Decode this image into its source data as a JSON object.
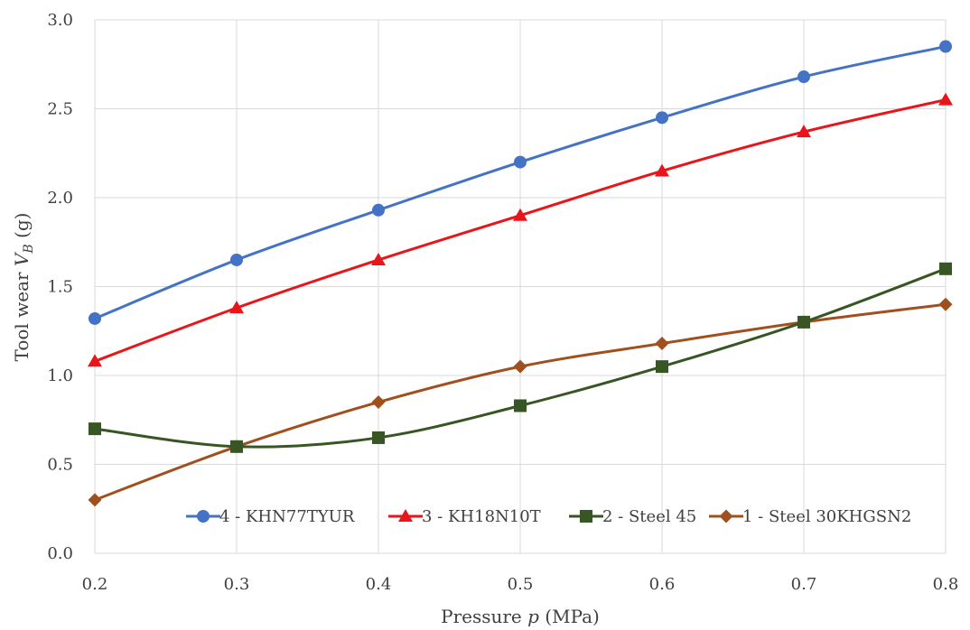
{
  "chart_data": {
    "type": "line",
    "x": [
      0.2,
      0.3,
      0.4,
      0.5,
      0.6,
      0.7,
      0.8
    ],
    "xlim": [
      0.2,
      0.8
    ],
    "ylim": [
      0,
      3.0
    ],
    "x_ticks": [
      "0.2",
      "0.3",
      "0.4",
      "0.5",
      "0.6",
      "0.7",
      "0.8"
    ],
    "y_ticks": [
      "0.0",
      "0.5",
      "1.0",
      "1.5",
      "2.0",
      "2.5",
      "3.0"
    ],
    "xlabel": {
      "pre": "Pressure ",
      "var": "p",
      "post": " (MPa)"
    },
    "ylabel": {
      "pre": "Tool wear ",
      "var": "V",
      "sub": "B",
      "post": " (g)"
    },
    "grid": "vertical and horizontal",
    "legend_position": "bottom-right inside plot",
    "series": [
      {
        "name": "4 - KHN77TYUR",
        "color": "#4472C4",
        "marker": "circle",
        "values": [
          1.32,
          1.65,
          1.93,
          2.2,
          2.45,
          2.68,
          2.85
        ]
      },
      {
        "name": "3 - KH18N10T",
        "color": "#E8161B",
        "marker": "triangle",
        "values": [
          1.08,
          1.38,
          1.65,
          1.9,
          2.15,
          2.37,
          2.55
        ]
      },
      {
        "name": "2 - Steel 45",
        "color": "#375623",
        "marker": "square",
        "values": [
          0.7,
          0.6,
          0.65,
          0.83,
          1.05,
          1.3,
          1.6
        ]
      },
      {
        "name": "1 - Steel 30KHGSN2",
        "color": "#A0501E",
        "marker": "diamond",
        "values": [
          0.3,
          0.6,
          0.85,
          1.05,
          1.18,
          1.3,
          1.4
        ]
      }
    ]
  }
}
